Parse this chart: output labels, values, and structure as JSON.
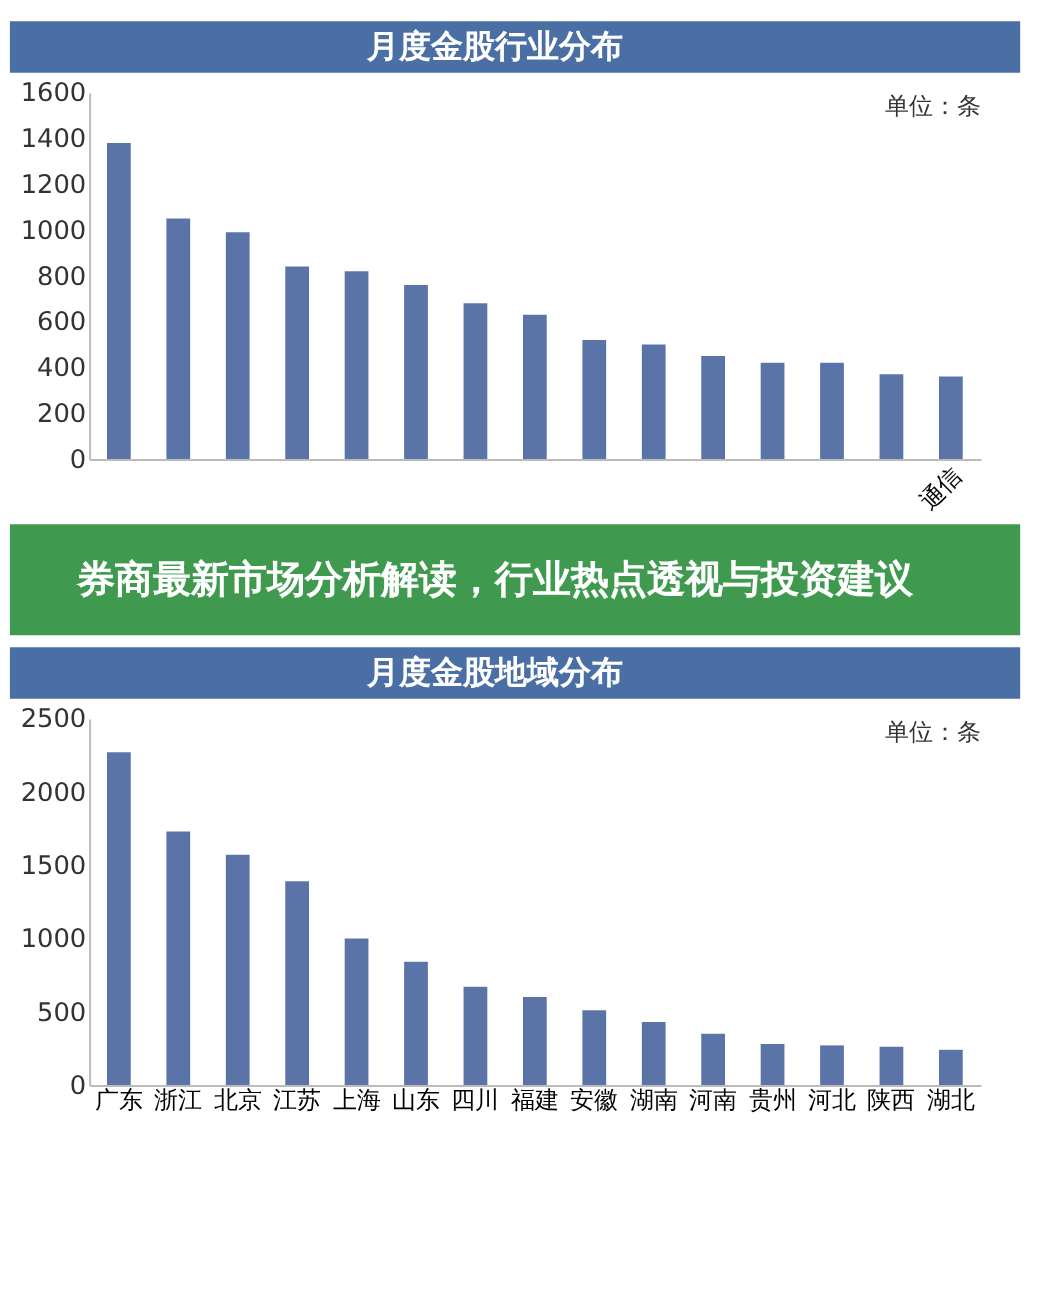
{
  "chart_data": [
    {
      "type": "bar",
      "title": "月度金股行业分布",
      "annotations": [
        "单位：条"
      ],
      "color": "#5b74a8",
      "categories": [
        null,
        null,
        null,
        null,
        null,
        null,
        null,
        null,
        null,
        null,
        null,
        null,
        null,
        null,
        "通信"
      ],
      "values": [
        1380,
        1050,
        990,
        840,
        820,
        760,
        680,
        630,
        520,
        500,
        450,
        420,
        420,
        370,
        360
      ],
      "ylim": [
        0,
        1600
      ],
      "yticks": [
        0,
        200,
        400,
        600,
        800,
        1000,
        1200,
        1400,
        1600
      ],
      "grid": false
    },
    {
      "type": "other",
      "title": "券商最新市场分析解读，行业热点透视与投资建议"
    },
    {
      "type": "bar",
      "title": "月度金股地域分布",
      "annotations": [
        "单位：条"
      ],
      "color": "#5b74a8",
      "categories": [
        "广东",
        "浙江",
        "北京",
        "江苏",
        "上海",
        "山东",
        "四川",
        "福建",
        "安徽",
        "湖南",
        "河南",
        "贵州",
        "河北",
        "陕西",
        "湖北"
      ],
      "values": [
        2270,
        1730,
        1570,
        1390,
        1000,
        840,
        670,
        600,
        510,
        430,
        350,
        280,
        270,
        260,
        240
      ],
      "ylim": [
        0,
        2500
      ],
      "yticks": [
        0,
        500,
        1000,
        1500,
        2000,
        2500
      ],
      "grid": false
    }
  ]
}
